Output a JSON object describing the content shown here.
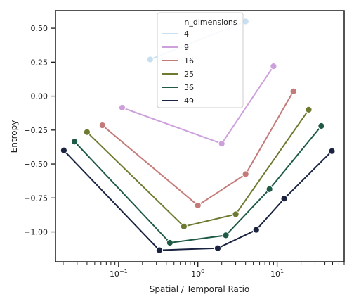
{
  "chart_data": {
    "type": "line",
    "xlabel": "Spatial / Temporal Ratio",
    "ylabel": "Entropy",
    "xscale": "log",
    "xlim": [
      0.016,
      70
    ],
    "ylim": [
      -1.22,
      0.63
    ],
    "x_ticks": [
      {
        "value": 0.1,
        "base": "10",
        "exp": "−1"
      },
      {
        "value": 1,
        "base": "10",
        "exp": "0"
      },
      {
        "value": 10,
        "base": "10",
        "exp": "1"
      }
    ],
    "y_ticks": [
      {
        "value": 0.5,
        "label": "0.50"
      },
      {
        "value": 0.25,
        "label": "0.25"
      },
      {
        "value": 0.0,
        "label": "0.00"
      },
      {
        "value": -0.25,
        "label": "−0.25"
      },
      {
        "value": -0.5,
        "label": "−0.50"
      },
      {
        "value": -0.75,
        "label": "−0.75"
      },
      {
        "value": -1.0,
        "label": "−1.00"
      }
    ],
    "grid": false,
    "legend": {
      "title": "n_dimensions",
      "placement": "top-center"
    },
    "series": [
      {
        "name": "4",
        "color": "#c7dff0",
        "points": [
          [
            0.25,
            0.27
          ],
          [
            4.0,
            0.55
          ]
        ]
      },
      {
        "name": "9",
        "color": "#cda0dc",
        "points": [
          [
            0.111,
            -0.085
          ],
          [
            2.0,
            -0.35
          ],
          [
            9.0,
            0.22
          ]
        ]
      },
      {
        "name": "16",
        "color": "#c47a78",
        "points": [
          [
            0.0625,
            -0.215
          ],
          [
            1.0,
            -0.805
          ],
          [
            4.0,
            -0.575
          ],
          [
            16.0,
            0.035
          ]
        ]
      },
      {
        "name": "25",
        "color": "#6e7a30",
        "points": [
          [
            0.04,
            -0.265
          ],
          [
            0.667,
            -0.96
          ],
          [
            3.0,
            -0.87
          ],
          [
            25.0,
            -0.1
          ]
        ]
      },
      {
        "name": "36",
        "color": "#1f5b44",
        "points": [
          [
            0.0278,
            -0.335
          ],
          [
            0.444,
            -1.08
          ],
          [
            2.25,
            -1.025
          ],
          [
            8.0,
            -0.685
          ],
          [
            36.0,
            -0.22
          ]
        ]
      },
      {
        "name": "49",
        "color": "#1a2340",
        "points": [
          [
            0.0204,
            -0.4
          ],
          [
            0.327,
            -1.135
          ],
          [
            1.78,
            -1.12
          ],
          [
            5.44,
            -0.985
          ],
          [
            12.25,
            -0.755
          ],
          [
            49.0,
            -0.405
          ]
        ]
      }
    ]
  }
}
